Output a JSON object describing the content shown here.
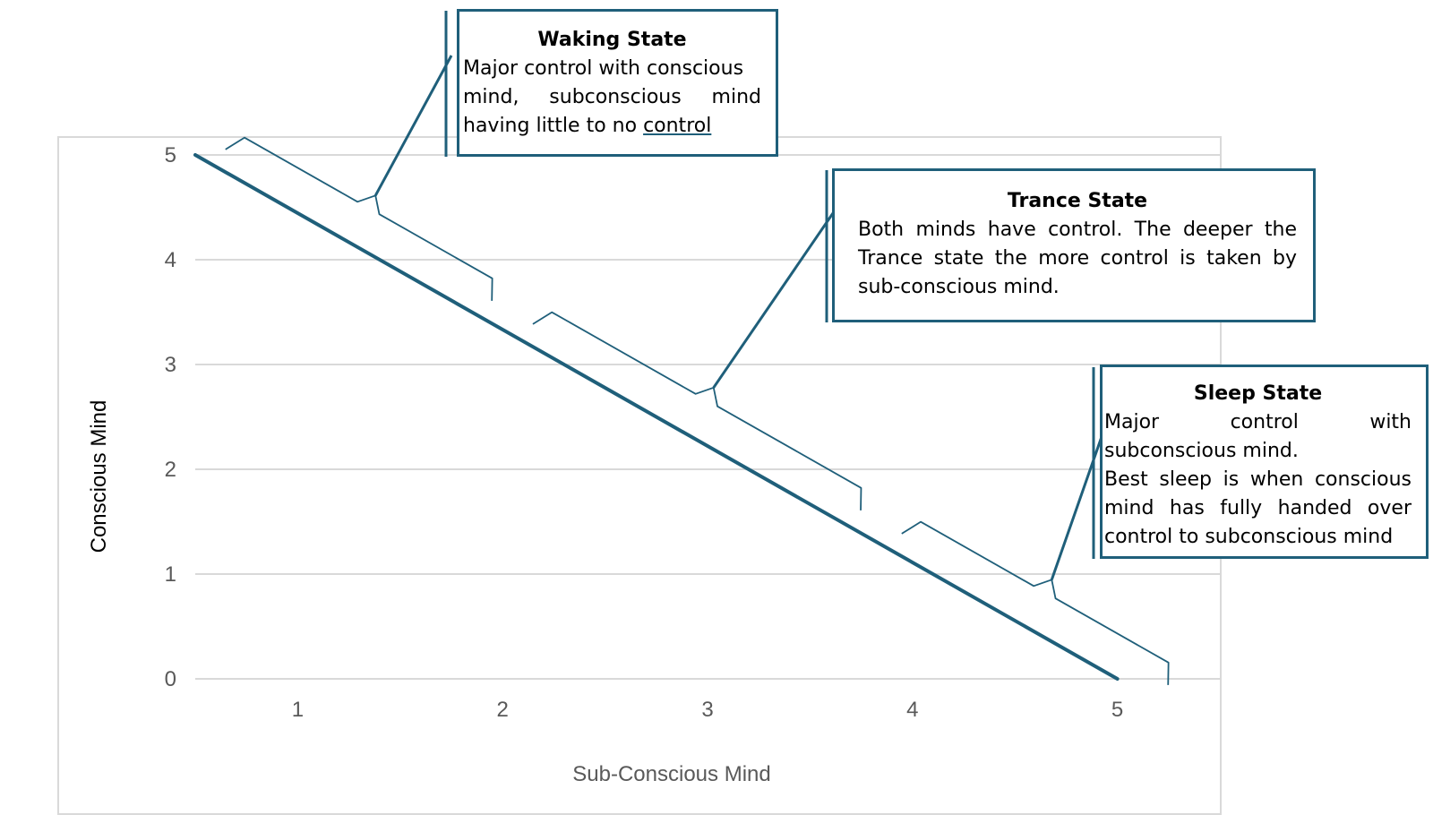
{
  "chart_data": {
    "type": "line",
    "title": "",
    "xlabel": "Sub-Conscious Mind",
    "ylabel": "Conscious Mind",
    "x_ticks": [
      "1",
      "2",
      "3",
      "4",
      "5"
    ],
    "y_ticks": [
      "0",
      "1",
      "2",
      "3",
      "4",
      "5"
    ],
    "xlim": [
      0.5,
      5.5
    ],
    "ylim": [
      0,
      5
    ],
    "grid": "horizontal",
    "legend": "none",
    "series": [
      {
        "x": [
          0.5,
          5.0
        ],
        "y": [
          5,
          0
        ]
      }
    ],
    "annotations": [
      {
        "id": "waking",
        "title": "Waking State",
        "lines": [
          "Major control with conscious",
          "mind, subconscious mind"
        ],
        "last_line_prefix": "having little to no ",
        "last_line_underlined": "control",
        "brace_x_range": [
          0.6,
          1.9
        ]
      },
      {
        "id": "trance",
        "title": "Trance State",
        "body": "Both minds have control. The deeper the Trance state the more control is taken by sub-conscious mind.",
        "brace_x_range": [
          2.1,
          3.7
        ]
      },
      {
        "id": "sleep",
        "title": "Sleep State",
        "paragraph1": "Major control with subconscious mind.",
        "paragraph2": "Best sleep is when conscious mind has fully handed over control to subconscious mind",
        "brace_x_range": [
          3.9,
          5.2
        ]
      }
    ]
  },
  "colors": {
    "line": "#1f5f7a",
    "callout_border": "#1f5f7a",
    "gridline": "#d9d9d9",
    "axis_text": "#595959",
    "plot_border": "#d9d9d9"
  }
}
